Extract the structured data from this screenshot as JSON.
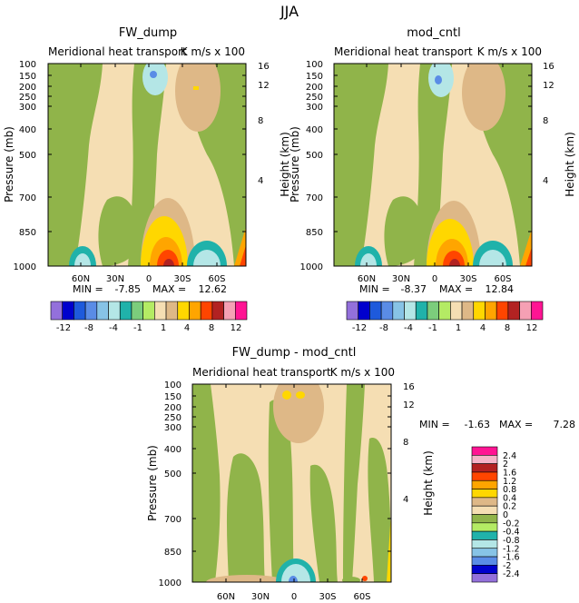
{
  "figure_title": "JJA",
  "chart_data": [
    {
      "type": "heatmap",
      "title": "FW_dump",
      "subtitle": "Meridional heat transport",
      "units": "K m/s x 100",
      "ylabel": "Pressure (mb)",
      "ylabel_right": "Height (km)",
      "x_ticks": [
        "60N",
        "30N",
        "0",
        "30S",
        "60S"
      ],
      "y_ticks": [
        "100",
        "150",
        "200",
        "250",
        "300",
        "400",
        "500",
        "700",
        "850",
        "1000"
      ],
      "y_right_ticks": [
        "16",
        "12",
        "8",
        "4"
      ],
      "ylim": [
        1000,
        100
      ],
      "min_label": "MIN =",
      "min_value": "-7.85",
      "max_label": "MAX =",
      "max_value": "12.62",
      "colorbar_labels": [
        "-12",
        "-8",
        "-4",
        "-1",
        "1",
        "4",
        "8",
        "12"
      ]
    },
    {
      "type": "heatmap",
      "title": "mod_cntl",
      "subtitle": "Meridional heat transport",
      "units": "K m/s x 100",
      "ylabel": "Pressure (mb)",
      "ylabel_right": "Height (km)",
      "x_ticks": [
        "60N",
        "30N",
        "0",
        "30S",
        "60S"
      ],
      "y_ticks": [
        "100",
        "150",
        "200",
        "250",
        "300",
        "400",
        "500",
        "700",
        "850",
        "1000"
      ],
      "y_right_ticks": [
        "16",
        "12",
        "8",
        "4"
      ],
      "ylim": [
        1000,
        100
      ],
      "min_label": "MIN =",
      "min_value": "-8.37",
      "max_label": "MAX =",
      "max_value": "12.84",
      "colorbar_labels": [
        "-12",
        "-8",
        "-4",
        "-1",
        "1",
        "4",
        "8",
        "12"
      ]
    },
    {
      "type": "heatmap",
      "title": "FW_dump - mod_cntl",
      "subtitle": "Meridional heat transport",
      "units": "K m/s x 100",
      "ylabel": "Pressure (mb)",
      "ylabel_right": "Height (km)",
      "x_ticks": [
        "60N",
        "30N",
        "0",
        "30S",
        "60S"
      ],
      "y_ticks": [
        "100",
        "150",
        "200",
        "250",
        "300",
        "400",
        "500",
        "700",
        "850",
        "1000"
      ],
      "y_right_ticks": [
        "16",
        "12",
        "8",
        "4"
      ],
      "ylim": [
        1000,
        100
      ],
      "min_label": "MIN =",
      "min_value": "-1.63",
      "max_label": "MAX =",
      "max_value": "7.28",
      "colorbar_labels": [
        "2.4",
        "2",
        "1.6",
        "1.2",
        "0.8",
        "0.4",
        "0.2",
        "0",
        "-0.2",
        "-0.4",
        "-0.8",
        "-1.2",
        "-1.6",
        "-2",
        "-2.4"
      ]
    }
  ],
  "palettes": {
    "abs": [
      "#9370db",
      "#0000cd",
      "#1e5adc",
      "#5a8ce6",
      "#87c3e6",
      "#b4e6e6",
      "#20b2aa",
      "#7ccd7c",
      "#b4eb64",
      "#f5deb3",
      "#deb887",
      "#ffd700",
      "#ffa500",
      "#ff4500",
      "#b22222",
      "#f5a0b4",
      "#ff1493"
    ],
    "diff": [
      "#ff1493",
      "#f5b4c8",
      "#b22222",
      "#ff4500",
      "#ffa500",
      "#ffd700",
      "#deb887",
      "#f5deb3",
      "#90b44a",
      "#b4eb64",
      "#20b2aa",
      "#b4e6e6",
      "#87c3e6",
      "#5a8ce6",
      "#0000cd",
      "#9370db"
    ]
  },
  "fill_colors": {
    "background": "#f5deb3",
    "green": "#90b44a",
    "tan": "#deb887",
    "lightblue": "#b4e6e6",
    "blue": "#5a8ce6",
    "teal": "#20b2aa",
    "yellow": "#ffd700",
    "orange": "#ffa500",
    "red": "#ff4500",
    "darkred": "#b22222",
    "pink": "#f5a0b4"
  }
}
